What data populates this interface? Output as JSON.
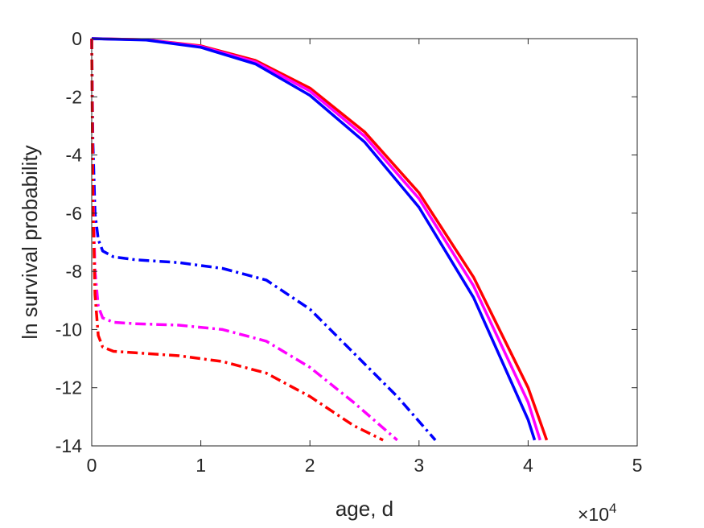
{
  "chart_data": {
    "type": "line",
    "xlabel": "age, d",
    "ylabel": "ln survival probability",
    "x_exponent_label": "×10",
    "x_exponent_power": "4",
    "xlim": [
      0,
      50000
    ],
    "ylim": [
      -14,
      0
    ],
    "x_ticks": [
      0,
      10000,
      20000,
      30000,
      40000,
      50000
    ],
    "x_tick_labels": [
      "0",
      "1",
      "2",
      "3",
      "4",
      "5"
    ],
    "y_ticks": [
      0,
      -2,
      -4,
      -6,
      -8,
      -10,
      -12,
      -14
    ],
    "y_tick_labels": [
      "0",
      "-2",
      "-4",
      "-6",
      "-8",
      "-10",
      "-12",
      "-14"
    ],
    "grid": false,
    "series": [
      {
        "color": "#ff0000",
        "line_style": "solid",
        "x": [
          0,
          5000,
          10000,
          15000,
          20000,
          25000,
          30000,
          35000,
          40000,
          41700
        ],
        "y": [
          0,
          -0.04,
          -0.25,
          -0.75,
          -1.7,
          -3.2,
          -5.3,
          -8.2,
          -12.0,
          -13.8
        ]
      },
      {
        "color": "#ff00ff",
        "line_style": "solid",
        "x": [
          0,
          5000,
          10000,
          15000,
          20000,
          25000,
          30000,
          35000,
          40000,
          41100
        ],
        "y": [
          0,
          -0.04,
          -0.27,
          -0.8,
          -1.8,
          -3.35,
          -5.5,
          -8.5,
          -12.5,
          -13.8
        ]
      },
      {
        "color": "#0000ff",
        "line_style": "solid",
        "x": [
          0,
          5000,
          10000,
          15000,
          20000,
          25000,
          30000,
          35000,
          40000,
          40600
        ],
        "y": [
          0,
          -0.05,
          -0.3,
          -0.87,
          -1.95,
          -3.55,
          -5.8,
          -8.9,
          -13.1,
          -13.8
        ]
      },
      {
        "color": "#0000ff",
        "line_style": "dashdot",
        "x": [
          0,
          100,
          300,
          600,
          1000,
          2000,
          4000,
          8000,
          12000,
          16000,
          20000,
          24000,
          28000,
          31500
        ],
        "y": [
          0,
          -3.5,
          -6.0,
          -6.9,
          -7.3,
          -7.5,
          -7.6,
          -7.7,
          -7.9,
          -8.3,
          -9.3,
          -10.8,
          -12.3,
          -13.8
        ]
      },
      {
        "color": "#ff00ff",
        "line_style": "dashdot",
        "x": [
          0,
          100,
          300,
          600,
          1000,
          2000,
          4000,
          8000,
          12000,
          16000,
          20000,
          24000,
          28000
        ],
        "y": [
          0,
          -5.0,
          -8.0,
          -9.2,
          -9.6,
          -9.75,
          -9.8,
          -9.85,
          -10.0,
          -10.4,
          -11.3,
          -12.5,
          -13.8
        ]
      },
      {
        "color": "#ff0000",
        "line_style": "dashdot",
        "x": [
          0,
          100,
          300,
          600,
          1000,
          2000,
          4000,
          8000,
          12000,
          16000,
          20000,
          24000,
          26700
        ],
        "y": [
          0,
          -5.5,
          -8.8,
          -10.2,
          -10.6,
          -10.75,
          -10.8,
          -10.9,
          -11.1,
          -11.5,
          -12.3,
          -13.3,
          -13.8
        ]
      }
    ]
  }
}
